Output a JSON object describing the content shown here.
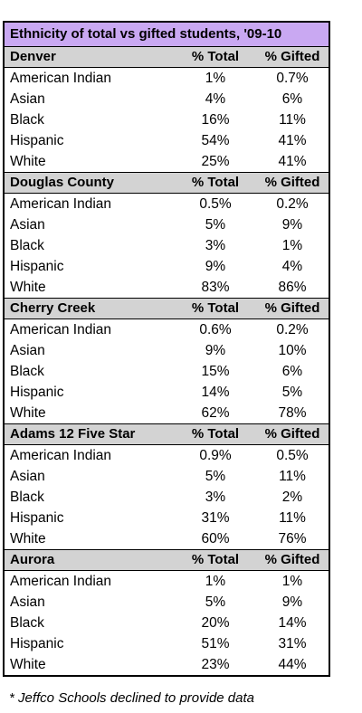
{
  "chart_data": {
    "type": "table",
    "title": "Ethnicity of total vs gifted students, '09-10",
    "columns": [
      "% Total",
      "% Gifted"
    ],
    "groups": [
      {
        "name": "Denver",
        "rows": [
          {
            "label": "American Indian",
            "total": "1%",
            "gifted": "0.7%"
          },
          {
            "label": "Asian",
            "total": "4%",
            "gifted": "6%"
          },
          {
            "label": "Black",
            "total": "16%",
            "gifted": "11%"
          },
          {
            "label": "Hispanic",
            "total": "54%",
            "gifted": "41%"
          },
          {
            "label": "White",
            "total": "25%",
            "gifted": "41%"
          }
        ]
      },
      {
        "name": "Douglas County",
        "rows": [
          {
            "label": "American Indian",
            "total": "0.5%",
            "gifted": "0.2%"
          },
          {
            "label": "Asian",
            "total": "5%",
            "gifted": "9%"
          },
          {
            "label": "Black",
            "total": "3%",
            "gifted": "1%"
          },
          {
            "label": "Hispanic",
            "total": "9%",
            "gifted": "4%"
          },
          {
            "label": "White",
            "total": "83%",
            "gifted": "86%"
          }
        ]
      },
      {
        "name": "Cherry Creek",
        "rows": [
          {
            "label": "American Indian",
            "total": "0.6%",
            "gifted": "0.2%"
          },
          {
            "label": "Asian",
            "total": "9%",
            "gifted": "10%"
          },
          {
            "label": "Black",
            "total": "15%",
            "gifted": "6%"
          },
          {
            "label": "Hispanic",
            "total": "14%",
            "gifted": "5%"
          },
          {
            "label": "White",
            "total": "62%",
            "gifted": "78%"
          }
        ]
      },
      {
        "name": "Adams 12 Five Star",
        "rows": [
          {
            "label": "American Indian",
            "total": "0.9%",
            "gifted": "0.5%"
          },
          {
            "label": "Asian",
            "total": "5%",
            "gifted": "11%"
          },
          {
            "label": "Black",
            "total": "3%",
            "gifted": "2%"
          },
          {
            "label": "Hispanic",
            "total": "31%",
            "gifted": "11%"
          },
          {
            "label": "White",
            "total": "60%",
            "gifted": "76%"
          }
        ]
      },
      {
        "name": "Aurora",
        "rows": [
          {
            "label": "American Indian",
            "total": "1%",
            "gifted": "1%"
          },
          {
            "label": "Asian",
            "total": "5%",
            "gifted": "9%"
          },
          {
            "label": "Black",
            "total": "20%",
            "gifted": "14%"
          },
          {
            "label": "Hispanic",
            "total": "51%",
            "gifted": "31%"
          },
          {
            "label": "White",
            "total": "23%",
            "gifted": "44%"
          }
        ]
      }
    ],
    "footnote": "* Jeffco Schools declined to provide data",
    "colors": {
      "title_bg": "#c9a8f2",
      "group_header_bg": "#d3d3d3"
    }
  }
}
